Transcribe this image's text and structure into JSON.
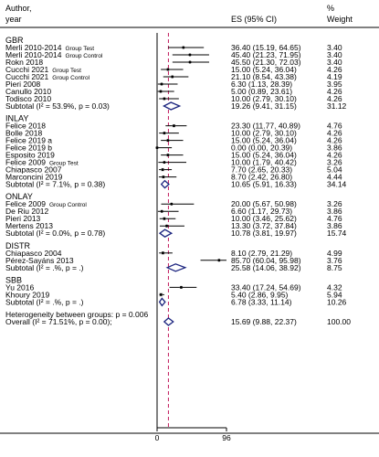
{
  "chart_data": {
    "type": "forest",
    "headers": {
      "study": [
        "Author,",
        "year"
      ],
      "es": "ES (95% CI)",
      "weight": [
        "%",
        "Weight"
      ]
    },
    "x_axis": {
      "min": 0,
      "max": 96,
      "ticks": [
        "0",
        "96"
      ],
      "null_line": 0,
      "overall_line": 15.69
    },
    "groups": [
      {
        "name": "GBR",
        "studies": [
          {
            "label": "Merli 2010-2014",
            "sub": "Group Test",
            "es": 36.4,
            "lo": 15.19,
            "hi": 64.65,
            "ci_text": "36.40 (15.19, 64.65)",
            "weight": "3.40"
          },
          {
            "label": "Merli 2010-2014",
            "sub": "Group Control",
            "es": 45.4,
            "lo": 21.23,
            "hi": 71.95,
            "ci_text": "45.40 (21.23, 71.95)",
            "weight": "3.40"
          },
          {
            "label": "Rokn 2018",
            "sub": "",
            "es": 45.5,
            "lo": 21.3,
            "hi": 72.03,
            "ci_text": "45.50 (21.30, 72.03)",
            "weight": "3.40"
          },
          {
            "label": "Cucchi 2021",
            "sub": "Group Test",
            "es": 15.0,
            "lo": 5.24,
            "hi": 36.04,
            "ci_text": "15.00 (5.24, 36.04)",
            "weight": "4.26"
          },
          {
            "label": "Cucchi 2021",
            "sub": "Group Control",
            "es": 21.1,
            "lo": 8.54,
            "hi": 43.38,
            "ci_text": "21.10 (8.54, 43.38)",
            "weight": "4.19"
          },
          {
            "label": "Pieri 2008",
            "sub": "",
            "es": 6.3,
            "lo": 1.13,
            "hi": 28.39,
            "ci_text": "6.30 (1.13, 28.39)",
            "weight": "3.95"
          },
          {
            "label": "Canullo 2010",
            "sub": "",
            "es": 5.0,
            "lo": 0.89,
            "hi": 23.61,
            "ci_text": "5.00 (0.89, 23.61)",
            "weight": "4.26"
          },
          {
            "label": "Todisco 2010",
            "sub": "",
            "es": 10.0,
            "lo": 2.79,
            "hi": 30.1,
            "ci_text": "10.00 (2.79, 30.10)",
            "weight": "4.26"
          }
        ],
        "subtotal": {
          "label": "Subtotal  (I² = 53.9%, p = 0.03)",
          "es": 19.26,
          "lo": 9.41,
          "hi": 31.15,
          "ci_text": "19.26 (9.41, 31.15)",
          "weight": "31.12"
        }
      },
      {
        "name": "INLAY",
        "studies": [
          {
            "label": "Felice 2018",
            "sub": "",
            "es": 23.3,
            "lo": 11.77,
            "hi": 40.89,
            "ci_text": "23.30 (11.77, 40.89)",
            "weight": "4.76"
          },
          {
            "label": "Bolle 2018",
            "sub": "",
            "es": 10.0,
            "lo": 2.79,
            "hi": 30.1,
            "ci_text": "10.00 (2.79, 30.10)",
            "weight": "4.26"
          },
          {
            "label": "Felice 2019 a",
            "sub": "",
            "es": 15.0,
            "lo": 5.24,
            "hi": 36.04,
            "ci_text": "15.00 (5.24, 36.04)",
            "weight": "4.26"
          },
          {
            "label": "Felice 2019 b",
            "sub": "",
            "es": 0.0,
            "lo": 0.0,
            "hi": 20.39,
            "ci_text": "0.00 (0.00, 20.39)",
            "weight": "3.86"
          },
          {
            "label": "Esposito 2019",
            "sub": "",
            "es": 15.0,
            "lo": 5.24,
            "hi": 36.04,
            "ci_text": "15.00 (5.24, 36.04)",
            "weight": "4.26"
          },
          {
            "label": "Felice 2009",
            "sub": "Group Test",
            "es": 10.0,
            "lo": 1.79,
            "hi": 40.42,
            "ci_text": "10.00 (1.79, 40.42)",
            "weight": "3.26"
          },
          {
            "label": "Chiapasco 2007",
            "sub": "",
            "es": 7.7,
            "lo": 2.65,
            "hi": 20.33,
            "ci_text": "7.70 (2.65, 20.33)",
            "weight": "5.04"
          },
          {
            "label": "Marconcini 2019",
            "sub": "",
            "es": 8.7,
            "lo": 2.42,
            "hi": 26.8,
            "ci_text": "8.70 (2.42, 26.80)",
            "weight": "4.44"
          }
        ],
        "subtotal": {
          "label": "Subtotal  (I² = 7.1%, p = 0.38)",
          "es": 10.65,
          "lo": 5.91,
          "hi": 16.33,
          "ci_text": "10.65 (5.91, 16.33)",
          "weight": "34.14"
        }
      },
      {
        "name": "ONLAY",
        "studies": [
          {
            "label": "Felice 2009",
            "sub": "Group Control",
            "es": 20.0,
            "lo": 5.67,
            "hi": 50.98,
            "ci_text": "20.00 (5.67, 50.98)",
            "weight": "3.26"
          },
          {
            "label": "De Riu 2012",
            "sub": "",
            "es": 6.6,
            "lo": 1.17,
            "hi": 29.73,
            "ci_text": "6.60 (1.17, 29.73)",
            "weight": "3.86"
          },
          {
            "label": "Pieri 2013",
            "sub": "",
            "es": 10.0,
            "lo": 3.46,
            "hi": 25.62,
            "ci_text": "10.00 (3.46, 25.62)",
            "weight": "4.76"
          },
          {
            "label": "Mertens 2013",
            "sub": "",
            "es": 13.3,
            "lo": 3.72,
            "hi": 37.84,
            "ci_text": "13.30 (3.72, 37.84)",
            "weight": "3.86"
          }
        ],
        "subtotal": {
          "label": "Subtotal  (I² = 0.0%, p = 0.78)",
          "es": 10.78,
          "lo": 3.81,
          "hi": 19.97,
          "ci_text": "10.78 (3.81, 19.97)",
          "weight": "15.74"
        }
      },
      {
        "name": "DISTR",
        "studies": [
          {
            "label": "Chiapasco 2004",
            "sub": "",
            "es": 8.1,
            "lo": 2.79,
            "hi": 21.29,
            "ci_text": "8.10 (2.79, 21.29)",
            "weight": "4.99"
          },
          {
            "label": "Pérez-Sayáns 2013",
            "sub": "",
            "es": 85.7,
            "lo": 60.04,
            "hi": 95.98,
            "ci_text": "85.70 (60.04, 95.98)",
            "weight": "3.76"
          }
        ],
        "subtotal": {
          "label": "Subtotal  (I² = .%, p = .)",
          "es": 25.58,
          "lo": 14.06,
          "hi": 38.92,
          "ci_text": "25.58 (14.06, 38.92)",
          "weight": "8.75"
        }
      },
      {
        "name": "SBB",
        "studies": [
          {
            "label": "Yu 2016",
            "sub": "",
            "es": 33.4,
            "lo": 17.24,
            "hi": 54.69,
            "ci_text": "33.40 (17.24, 54.69)",
            "weight": "4.32"
          },
          {
            "label": "Khoury 2019",
            "sub": "",
            "es": 5.4,
            "lo": 2.86,
            "hi": 9.95,
            "ci_text": "5.40 (2.86, 9.95)",
            "weight": "5.94"
          }
        ],
        "subtotal": {
          "label": "Subtotal  (I² = .%, p = .)",
          "es": 6.78,
          "lo": 3.33,
          "hi": 11.14,
          "ci_text": "6.78 (3.33, 11.14)",
          "weight": "10.26"
        }
      }
    ],
    "heterogeneity_text": "Heterogeneity between groups: p = 0.006",
    "overall": {
      "label": "Overall  (I² = 71.51%, p = 0.00);",
      "es": 15.69,
      "lo": 9.88,
      "hi": 22.37,
      "ci_text": "15.69 (9.88, 22.37)",
      "weight": "100.00"
    },
    "colors": {
      "marker": "#000000",
      "diamond": "#1a237e",
      "overall_line": "#c2185b",
      "null_line": "#000000"
    }
  }
}
